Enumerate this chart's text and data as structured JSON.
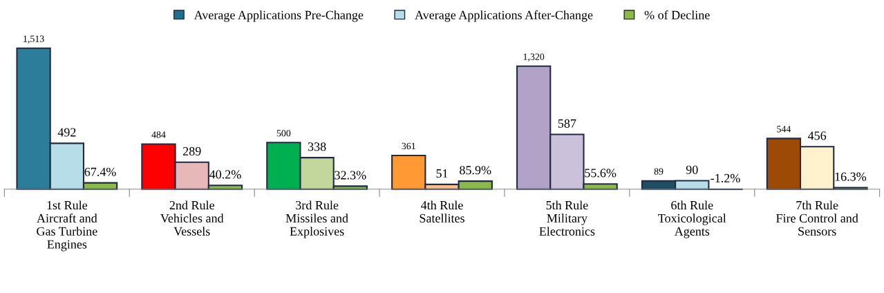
{
  "chart_data": {
    "type": "bar",
    "categories": [
      "1st Rule\nAircraft and\nGas Turbine\nEngines",
      "2nd Rule\nVehicles and\nVessels",
      "3rd Rule\nMissiles and\nExplosives",
      "4th Rule\nSatellites",
      "5th Rule\nMilitary\nElectronics",
      "6th Rule\nToxicological\nAgents",
      "7th Rule\nFire Control and\nSensors"
    ],
    "series": [
      {
        "name": "Average Applications Pre-Change",
        "color": "#1f6e8c",
        "colors": [
          "#2b7d99",
          "#ff0000",
          "#00b050",
          "#ff9933",
          "#b3a2c7",
          "#1f4e63",
          "#9c4a06"
        ],
        "values": [
          1513,
          484,
          500,
          361,
          1320,
          89,
          544
        ],
        "value_labels": [
          "1,513",
          "484",
          "500",
          "361",
          "1,320",
          "89",
          "544"
        ]
      },
      {
        "name": "Average Applications After-Change",
        "color": "#b7dde8",
        "colors": [
          "#b7dde8",
          "#e6b9b8",
          "#c3d69b",
          "#fac090",
          "#ccc1da",
          "#b7dde8",
          "#fff2cc"
        ],
        "values": [
          492,
          289,
          338,
          51,
          587,
          90,
          456
        ],
        "value_labels": [
          "492",
          "289",
          "338",
          "51",
          "587",
          "90",
          "456"
        ]
      },
      {
        "name": "% of Decline",
        "color": "#8db84a",
        "colors": [
          "#8db84a",
          "#8db84a",
          "#8db84a",
          "#8db84a",
          "#8db84a",
          "#8db84a",
          "#8db84a"
        ],
        "values": [
          67.4,
          40.2,
          32.3,
          85.9,
          55.6,
          -1.2,
          16.3
        ],
        "value_labels": [
          "67.4%",
          "40.2%",
          "32.3%",
          "85.9%",
          "55.6%",
          "-1.2%",
          "16.3%"
        ]
      }
    ],
    "legend": "top",
    "grid": false
  }
}
